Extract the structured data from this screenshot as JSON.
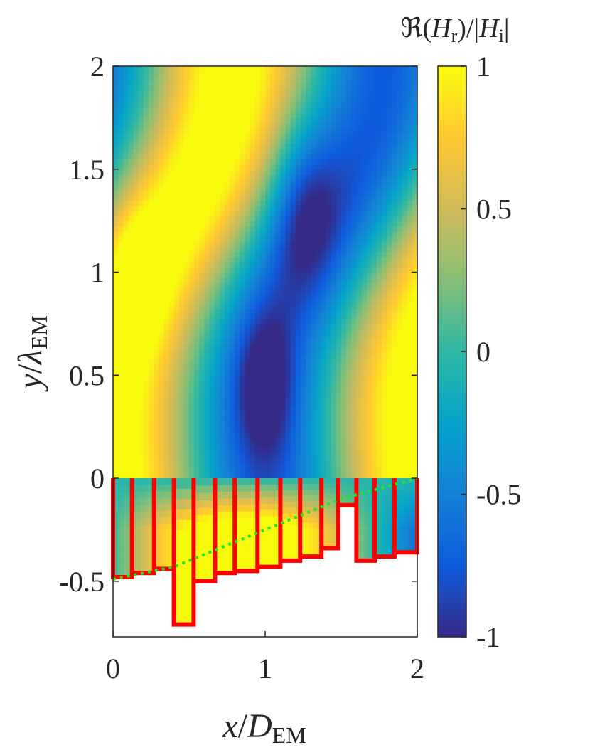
{
  "chart_data": {
    "type": "heatmap",
    "title": "",
    "colorbar": {
      "label": "ℜ(H_r)/|H_i|",
      "label_parts": [
        "ℜ(",
        "H",
        "r",
        ")/|",
        "H",
        "i",
        "|"
      ],
      "range": [
        -1,
        1
      ],
      "ticks": [
        1,
        0.5,
        0,
        -0.5,
        -1
      ],
      "tick_labels": [
        "1",
        "0.5",
        "0",
        "-0.5",
        "-1"
      ],
      "colormap": "parula",
      "colormap_stops": [
        "#352a87",
        "#0f5cdd",
        "#1481d6",
        "#06a4ca",
        "#2eb7a4",
        "#87bf77",
        "#d1bb59",
        "#fec832",
        "#f9fb0e"
      ]
    },
    "x_axis": {
      "label": "x/D_EM",
      "label_parts": [
        "x",
        "/",
        "D",
        "EM"
      ],
      "range": [
        0,
        2
      ],
      "ticks": [
        0,
        1,
        2
      ],
      "tick_labels": [
        "0",
        "1",
        "2"
      ]
    },
    "y_axis": {
      "label": "y/λ_EM",
      "label_parts": [
        "y",
        "/",
        "λ",
        "EM"
      ],
      "range": [
        -0.77,
        2
      ],
      "ticks": [
        2,
        1.5,
        1,
        0.5,
        0,
        -0.5
      ],
      "tick_labels": [
        "2",
        "1.5",
        "1",
        "0.5",
        "0",
        "-0.5"
      ]
    },
    "grooves": {
      "edge_color": "#ff0000",
      "x_edges": [
        0,
        0.125,
        0.27,
        0.4,
        0.53,
        0.67,
        0.8,
        0.95,
        1.1,
        1.23,
        1.37,
        1.48,
        1.6,
        1.72,
        1.85,
        2.0
      ],
      "bottoms": [
        -0.48,
        -0.46,
        -0.44,
        -0.71,
        -0.5,
        -0.46,
        -0.45,
        -0.43,
        -0.4,
        -0.38,
        -0.34,
        -0.13,
        -0.4,
        -0.38,
        -0.36
      ]
    },
    "reference_line": {
      "color": "#22e622",
      "style": "dotted",
      "x": [
        0,
        0.4,
        1.5,
        2.0
      ],
      "y": [
        -0.49,
        -0.43,
        -0.1,
        0.0
      ]
    }
  }
}
